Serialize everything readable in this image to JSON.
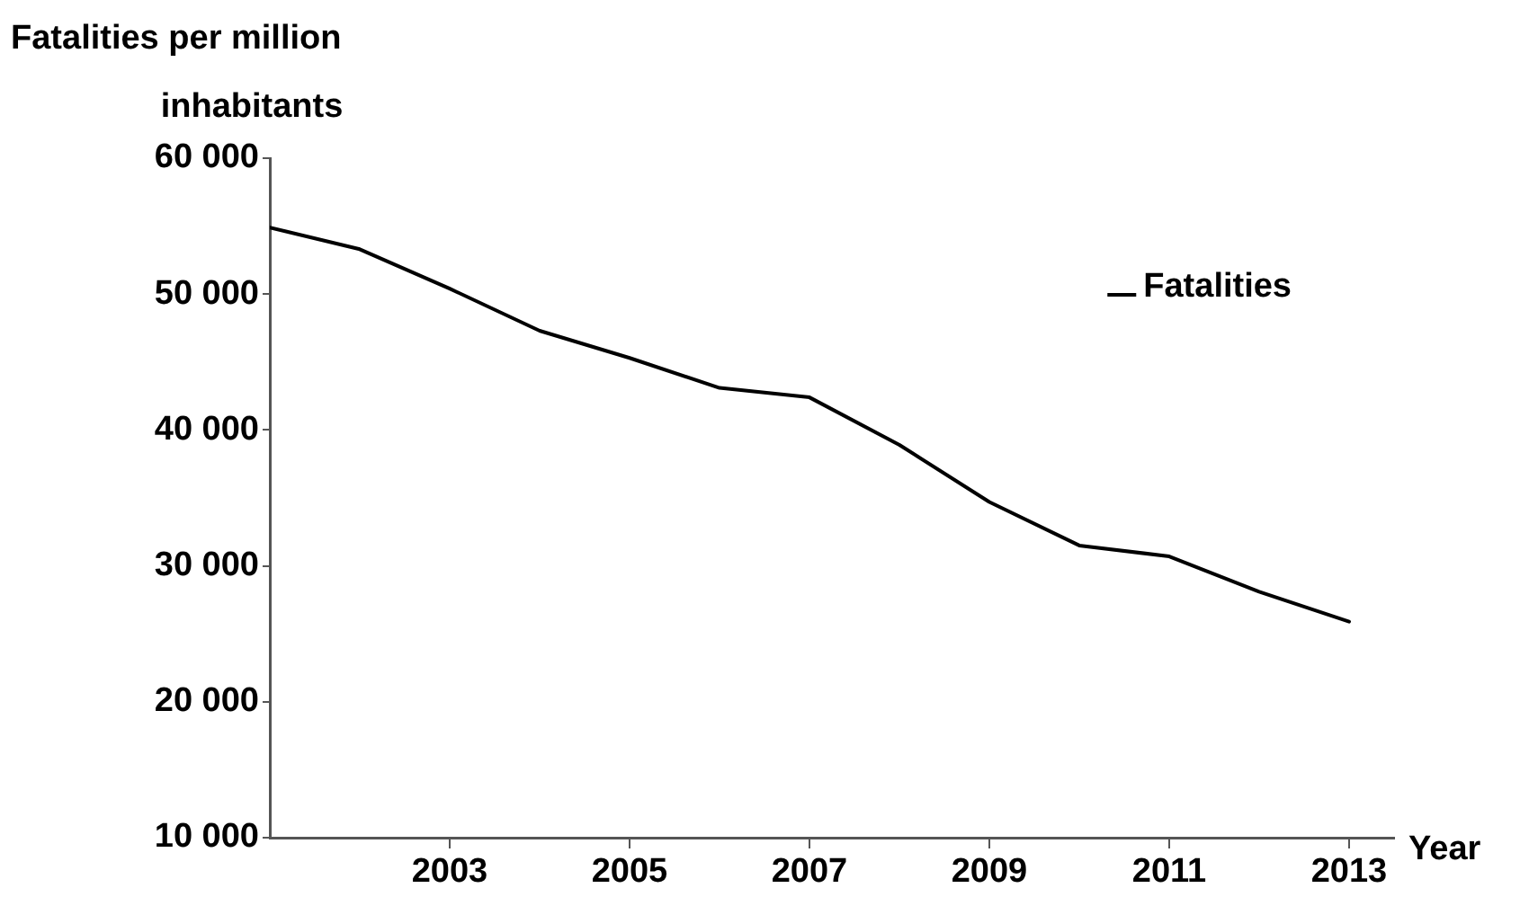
{
  "chart_data": {
    "type": "line",
    "ylabel": "Fatalities per million inhabitants",
    "xlabel": "Year",
    "x": [
      2001,
      2002,
      2003,
      2004,
      2005,
      2006,
      2007,
      2008,
      2009,
      2010,
      2011,
      2012,
      2013
    ],
    "series": [
      {
        "name": "Fatalities",
        "color": "#000000",
        "values": [
          54900,
          53300,
          50400,
          47300,
          45300,
          43100,
          42400,
          38900,
          34700,
          31500,
          30700,
          28100,
          25900
        ]
      }
    ],
    "xlim": [
      2001,
      2013.5
    ],
    "xticks": [
      2003,
      2005,
      2007,
      2009,
      2011,
      2013
    ],
    "ylim": [
      10000,
      60000
    ],
    "yticks": [
      {
        "value": 10000,
        "label": "10 000"
      },
      {
        "value": 20000,
        "label": "20 000"
      },
      {
        "value": 30000,
        "label": "30 000"
      },
      {
        "value": 40000,
        "label": "40 000"
      },
      {
        "value": 50000,
        "label": "50 000"
      },
      {
        "value": 60000,
        "label": "60 000"
      }
    ],
    "grid": false,
    "legend": "top right",
    "marker": "none",
    "line_style": "solid"
  }
}
